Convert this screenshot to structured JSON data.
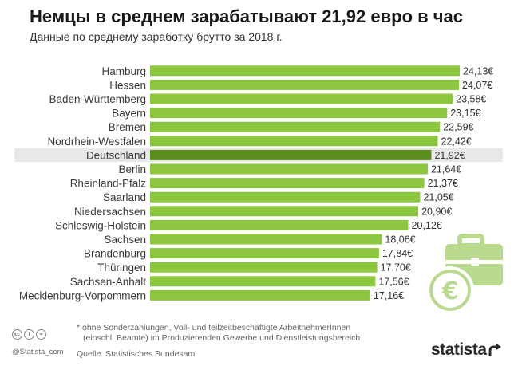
{
  "header": {
    "title": "Немцы в среднем зарабатывают 21,92 евро в час",
    "subtitle": "Данные по среднему заработку брутто за 2018 г."
  },
  "chart_data": {
    "type": "bar",
    "orientation": "horizontal",
    "categories": [
      "Hamburg",
      "Hessen",
      "Baden-Württemberg",
      "Bayern",
      "Bremen",
      "Nordrhein-Westfalen",
      "Deutschland",
      "Berlin",
      "Rheinland-Pfalz",
      "Saarland",
      "Niedersachsen",
      "Schleswig-Holstein",
      "Sachsen",
      "Brandenburg",
      "Thüringen",
      "Sachsen-Anhalt",
      "Mecklenburg-Vorpommern"
    ],
    "values": [
      24.13,
      24.07,
      23.58,
      23.15,
      22.59,
      22.42,
      21.92,
      21.64,
      21.37,
      21.05,
      20.9,
      20.12,
      18.06,
      17.84,
      17.7,
      17.56,
      17.16
    ],
    "value_labels": [
      "24,13€",
      "24,07€",
      "23,58€",
      "23,15€",
      "22,59€",
      "22,42€",
      "21,92€",
      "21,64€",
      "21,37€",
      "21,05€",
      "20,90€",
      "20,12€",
      "18,06€",
      "17,84€",
      "17,70€",
      "17,56€",
      "17,16€"
    ],
    "highlighted_category": "Deutschland",
    "xlim": [
      0,
      24.13
    ],
    "grid": false,
    "legend": "none",
    "colors": {
      "bar": "#8dc63f",
      "bar_highlight": "#5c8d1f",
      "highlight_row_bg": "#e8e8e8",
      "decoration": "#b9d98f"
    }
  },
  "footer": {
    "footnote_line1": "* ohne Sonderzahlungen, Voll- und teilzeitbeschäftigte ArbeitnehmerInnen",
    "footnote_line2": "(einschl. Beamte) im Produzierenden Gewerbe und Dienstleistungsbereich",
    "source": "Quelle: Statistisches Bundesamt",
    "handle": "@Statista_com",
    "logo_text": "statista",
    "cc_icons": [
      "cc",
      "i",
      "="
    ]
  }
}
